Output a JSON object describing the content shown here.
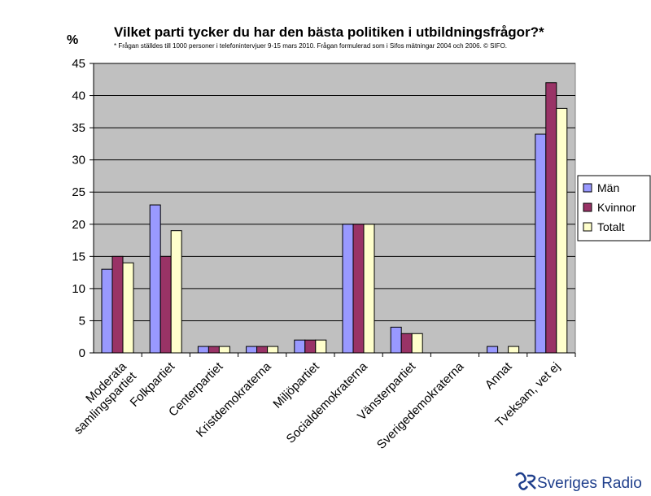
{
  "chart_data": {
    "type": "bar",
    "title": "Vilket parti tycker du har den bästa politiken i utbildningsfrågor?*",
    "footnote": "* Frågan ställdes till 1000 personer i telefonintervjuer 9-15 mars 2010. Frågan formulerad som i Sifos mätningar 2004 och 2006. © SIFO.",
    "ylabel": "%",
    "ylim": [
      0,
      45
    ],
    "yticks": [
      "0",
      "5",
      "10",
      "15",
      "20",
      "25",
      "30",
      "35",
      "40",
      "45"
    ],
    "categories": [
      [
        "Moderata",
        "samlingspartiet"
      ],
      [
        "Folkpartiet"
      ],
      [
        "Centerpartiet"
      ],
      [
        "Kristdemokraterna"
      ],
      [
        "Miljöpartiet"
      ],
      [
        "Socialdemokraterna"
      ],
      [
        "Vänsterpartiet"
      ],
      [
        "Sverigedemokraterna"
      ],
      [
        "Annat"
      ],
      [
        "Tveksam, vet ej"
      ]
    ],
    "series": [
      {
        "name": "Män",
        "color": "#9999ff",
        "values": [
          13,
          23,
          1,
          1,
          2,
          20,
          4,
          0,
          1,
          34
        ]
      },
      {
        "name": "Kvinnor",
        "color": "#993366",
        "values": [
          15,
          15,
          1,
          1,
          2,
          20,
          3,
          0,
          0,
          42
        ]
      },
      {
        "name": "Totalt",
        "color": "#ffffcc",
        "values": [
          14,
          19,
          1,
          1,
          2,
          20,
          3,
          0,
          1,
          38
        ]
      }
    ],
    "grid": true,
    "legend_position": "right",
    "plot_background": "#c0c0c0"
  },
  "branding": {
    "logo_text": "Sveriges Radio"
  }
}
